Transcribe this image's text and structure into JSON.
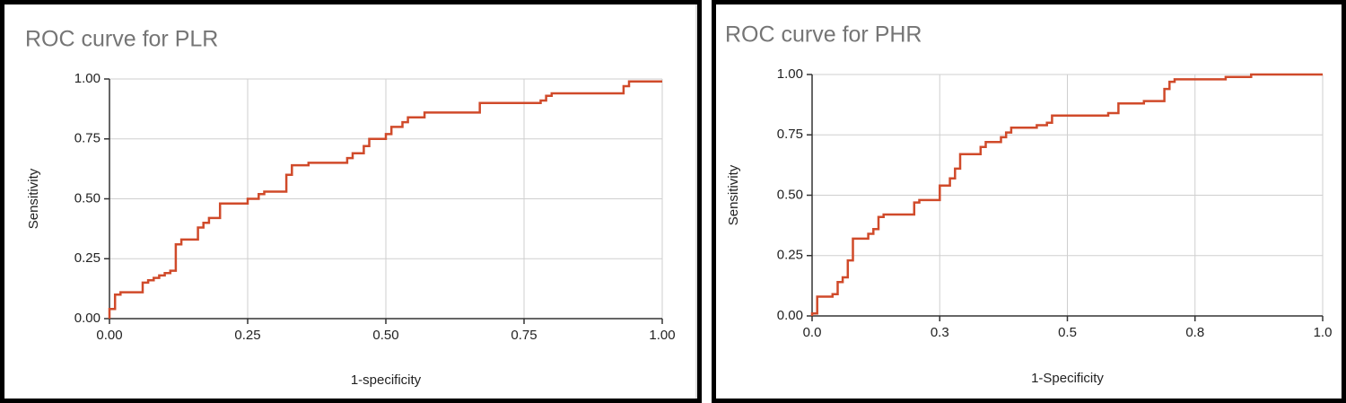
{
  "chart_data": [
    {
      "type": "line",
      "title": "ROC curve for PLR",
      "x_label": "1-specificity",
      "y_label": "Sensitivity",
      "color": "#d04a2a",
      "grid": true,
      "xlim": [
        0,
        1
      ],
      "ylim": [
        0,
        1
      ],
      "xticks": [
        {
          "value": 0,
          "label": "0.00"
        },
        0.25,
        {
          "value": 0.5,
          "label": "0.50"
        },
        0.75,
        {
          "value": 1,
          "label": "1.00"
        }
      ],
      "yticks": [
        {
          "value": 0,
          "label": "0.00"
        },
        0.25,
        {
          "value": 0.5,
          "label": "0.50"
        },
        0.75,
        {
          "value": 1,
          "label": "1.00"
        }
      ],
      "x": [
        0,
        0,
        0.01,
        0.01,
        0.02,
        0.02,
        0.06,
        0.06,
        0.07,
        0.07,
        0.08,
        0.08,
        0.09,
        0.09,
        0.1,
        0.1,
        0.11,
        0.11,
        0.12,
        0.12,
        0.13,
        0.13,
        0.16,
        0.16,
        0.17,
        0.17,
        0.18,
        0.18,
        0.2,
        0.2,
        0.25,
        0.25,
        0.27,
        0.27,
        0.28,
        0.28,
        0.32,
        0.32,
        0.33,
        0.33,
        0.36,
        0.36,
        0.43,
        0.43,
        0.44,
        0.44,
        0.46,
        0.46,
        0.47,
        0.47,
        0.5,
        0.5,
        0.51,
        0.51,
        0.53,
        0.53,
        0.54,
        0.54,
        0.57,
        0.57,
        0.67,
        0.67,
        0.78,
        0.78,
        0.79,
        0.79,
        0.8,
        0.8,
        0.93,
        0.93,
        0.94,
        0.94,
        1.0
      ],
      "y": [
        0,
        0.04,
        0.04,
        0.1,
        0.1,
        0.11,
        0.11,
        0.15,
        0.15,
        0.16,
        0.16,
        0.17,
        0.17,
        0.18,
        0.18,
        0.19,
        0.19,
        0.2,
        0.2,
        0.31,
        0.31,
        0.33,
        0.33,
        0.38,
        0.38,
        0.4,
        0.4,
        0.42,
        0.42,
        0.48,
        0.48,
        0.5,
        0.5,
        0.52,
        0.52,
        0.53,
        0.53,
        0.6,
        0.6,
        0.64,
        0.64,
        0.65,
        0.65,
        0.67,
        0.67,
        0.69,
        0.69,
        0.72,
        0.72,
        0.75,
        0.75,
        0.77,
        0.77,
        0.8,
        0.8,
        0.82,
        0.82,
        0.84,
        0.84,
        0.86,
        0.86,
        0.9,
        0.9,
        0.91,
        0.91,
        0.93,
        0.93,
        0.94,
        0.94,
        0.97,
        0.97,
        0.99,
        0.99
      ]
    },
    {
      "type": "line",
      "title": "ROC curve for PHR",
      "x_label": "1-Specificity",
      "y_label": "Sensitivity",
      "color": "#d04a2a",
      "grid": true,
      "xlim": [
        0,
        1
      ],
      "ylim": [
        0,
        1
      ],
      "xticks": [
        {
          "value": 0,
          "label": "0.0"
        },
        {
          "value": 0.25,
          "label": "0.3"
        },
        0.5,
        {
          "value": 0.75,
          "label": "0.8"
        },
        {
          "value": 1,
          "label": "1.0"
        }
      ],
      "yticks": [
        {
          "value": 0,
          "label": "0.00"
        },
        0.25,
        {
          "value": 0.5,
          "label": "0.50"
        },
        0.75,
        {
          "value": 1,
          "label": "1.00"
        }
      ],
      "x": [
        0,
        0,
        0.01,
        0.01,
        0.04,
        0.04,
        0.05,
        0.05,
        0.06,
        0.06,
        0.07,
        0.07,
        0.08,
        0.08,
        0.11,
        0.11,
        0.12,
        0.12,
        0.13,
        0.13,
        0.14,
        0.14,
        0.2,
        0.2,
        0.21,
        0.21,
        0.25,
        0.25,
        0.27,
        0.27,
        0.28,
        0.28,
        0.29,
        0.29,
        0.33,
        0.33,
        0.34,
        0.34,
        0.37,
        0.37,
        0.38,
        0.38,
        0.39,
        0.39,
        0.44,
        0.44,
        0.46,
        0.46,
        0.47,
        0.47,
        0.58,
        0.58,
        0.6,
        0.6,
        0.65,
        0.65,
        0.69,
        0.69,
        0.7,
        0.7,
        0.71,
        0.71,
        0.81,
        0.81,
        0.86,
        0.86,
        1.0
      ],
      "y": [
        0,
        0.01,
        0.01,
        0.08,
        0.08,
        0.09,
        0.09,
        0.14,
        0.14,
        0.16,
        0.16,
        0.23,
        0.23,
        0.32,
        0.32,
        0.34,
        0.34,
        0.36,
        0.36,
        0.41,
        0.41,
        0.42,
        0.42,
        0.47,
        0.47,
        0.48,
        0.48,
        0.54,
        0.54,
        0.57,
        0.57,
        0.61,
        0.61,
        0.67,
        0.67,
        0.7,
        0.7,
        0.72,
        0.72,
        0.74,
        0.74,
        0.76,
        0.76,
        0.78,
        0.78,
        0.79,
        0.79,
        0.8,
        0.8,
        0.83,
        0.83,
        0.84,
        0.84,
        0.88,
        0.88,
        0.89,
        0.89,
        0.94,
        0.94,
        0.97,
        0.97,
        0.98,
        0.98,
        0.99,
        0.99,
        1.0,
        1.0
      ]
    }
  ]
}
